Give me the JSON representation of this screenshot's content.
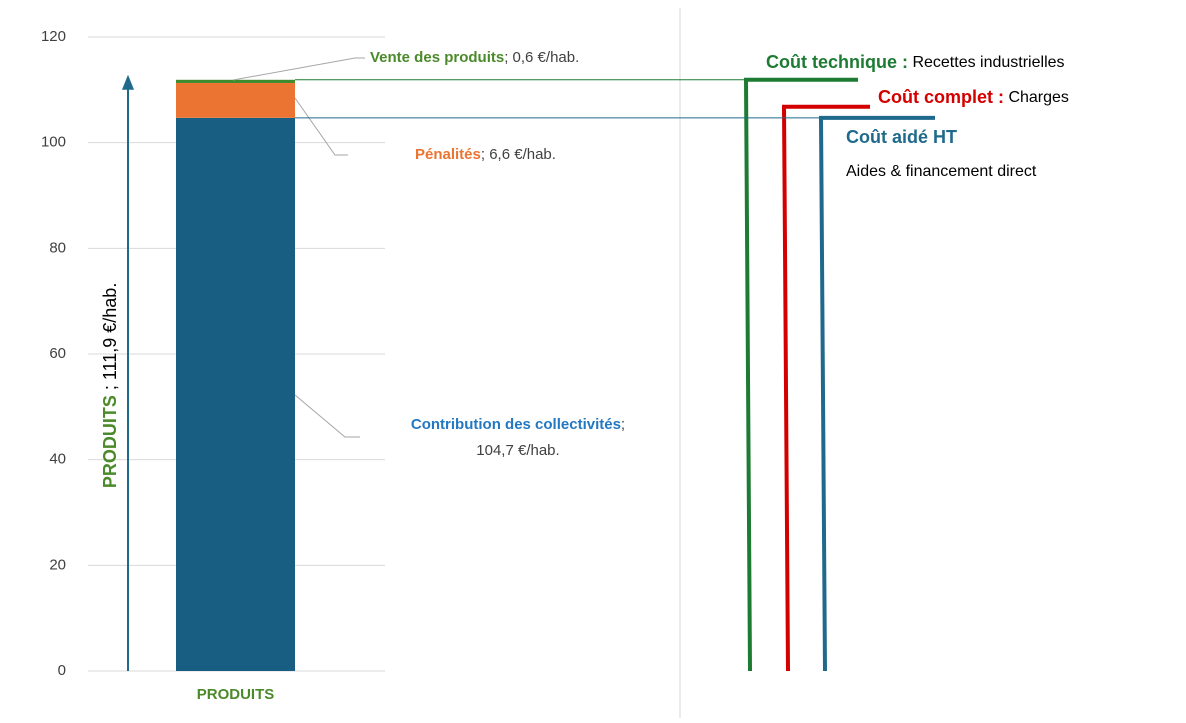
{
  "chart_data": {
    "type": "bar",
    "categories": [
      "PRODUITS"
    ],
    "series": [
      {
        "name": "Contribution des collectivités",
        "color": "#175e82",
        "label_color": "#2478c2",
        "values": [
          104.7
        ],
        "value_labels": [
          "104,7 €/hab."
        ]
      },
      {
        "name": "Pénalités",
        "color": "#ec7432",
        "label_color": "#ec7432",
        "values": [
          6.6
        ],
        "value_labels": [
          "6,6 €/hab."
        ]
      },
      {
        "name": "Vente des produits",
        "color": "#3f8a2e",
        "label_color": "#4b8a2a",
        "values": [
          0.6
        ],
        "value_labels": [
          "0,6 €/hab."
        ]
      }
    ],
    "label_separator": ";",
    "ylim": [
      0,
      120
    ],
    "yticks": [
      0,
      20,
      40,
      60,
      80,
      100,
      120
    ],
    "grid": true,
    "total": {
      "name": "PRODUITS",
      "separator": " ; ",
      "value": 111.9,
      "label": "111,9 €/hab.",
      "color": "#4b8a2a",
      "arrow_color": "#1f6a8c"
    },
    "markers": [
      {
        "title": "Coût technique :",
        "text": "Recettes industrielles",
        "value": 111.9,
        "color": "#1e7b34",
        "connector": true
      },
      {
        "title": "Coût complet :",
        "text": "Charges",
        "value": 106.8,
        "color": "#d40000",
        "connector": false
      },
      {
        "title": "Coût aidé HT",
        "text": "Aides & financement direct",
        "value": 104.7,
        "color": "#1f6a8c",
        "connector": true
      }
    ]
  }
}
